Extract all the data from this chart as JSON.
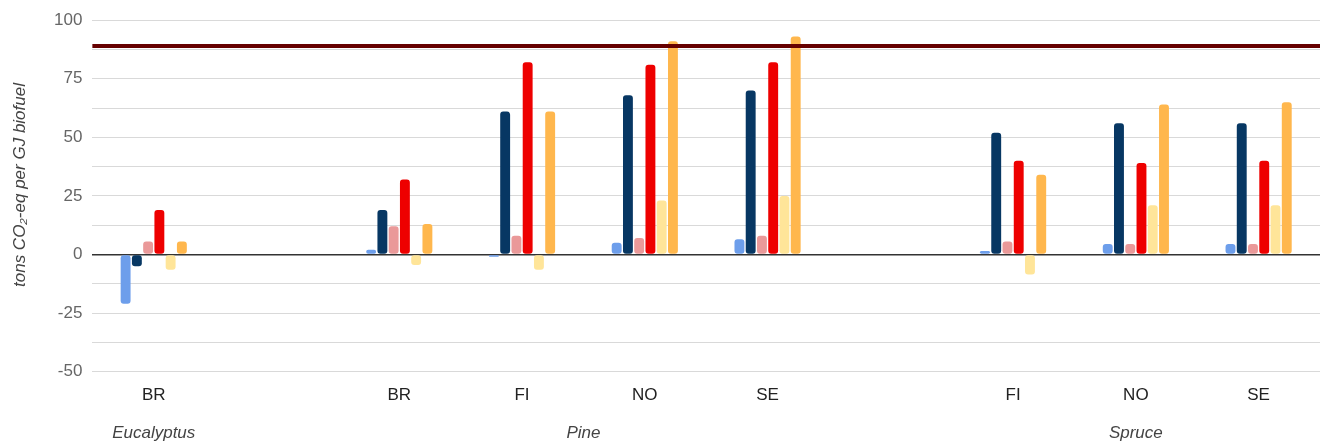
{
  "chart_data": {
    "type": "bar",
    "ylabel": "tons CO₂-eq per GJ biofuel",
    "categories": [
      "BR",
      null,
      "BR",
      "FI",
      "NO",
      "SE",
      null,
      "FI",
      "NO",
      "SE"
    ],
    "series": [
      {
        "color": "#6d9eeb",
        "values": [
          -21,
          null,
          2,
          -1,
          5,
          6.5,
          null,
          1.5,
          4.5,
          4.5
        ]
      },
      {
        "color": "#073763",
        "values": [
          -5,
          null,
          19,
          61,
          68,
          70,
          null,
          52,
          56,
          56
        ]
      },
      {
        "color": "#ea9999",
        "values": [
          5.5,
          null,
          12,
          8,
          7,
          8,
          null,
          5.5,
          4.5,
          4.5
        ]
      },
      {
        "color": "#ee0000",
        "values": [
          19,
          null,
          32,
          82,
          81,
          82,
          null,
          40,
          39,
          40
        ]
      },
      {
        "color": "#ffe599",
        "values": [
          -6.5,
          null,
          -4.5,
          -6.5,
          23,
          25,
          null,
          -8.5,
          21,
          21
        ]
      },
      {
        "color": "#ffb74d",
        "values": [
          5.5,
          null,
          13,
          61,
          91,
          93,
          null,
          34,
          64,
          65
        ]
      }
    ],
    "ylim": [
      -50,
      100
    ],
    "yticks": [
      -50,
      {
        "value": -37.5,
        "label": null
      },
      -25,
      {
        "value": -12.5,
        "label": null
      },
      0,
      {
        "value": 12.5,
        "label": null
      },
      25,
      {
        "value": 37.5,
        "label": null
      },
      50,
      {
        "value": 62.5,
        "label": null
      },
      75,
      {
        "value": 87.5,
        "label": null
      },
      100
    ],
    "grid": "y",
    "legend": false,
    "ref_lines": [
      {
        "axis": "y",
        "value": 89,
        "color": "#660000"
      }
    ],
    "annotations": [
      "Eucalyptus",
      "Pine",
      "Spruce"
    ]
  }
}
